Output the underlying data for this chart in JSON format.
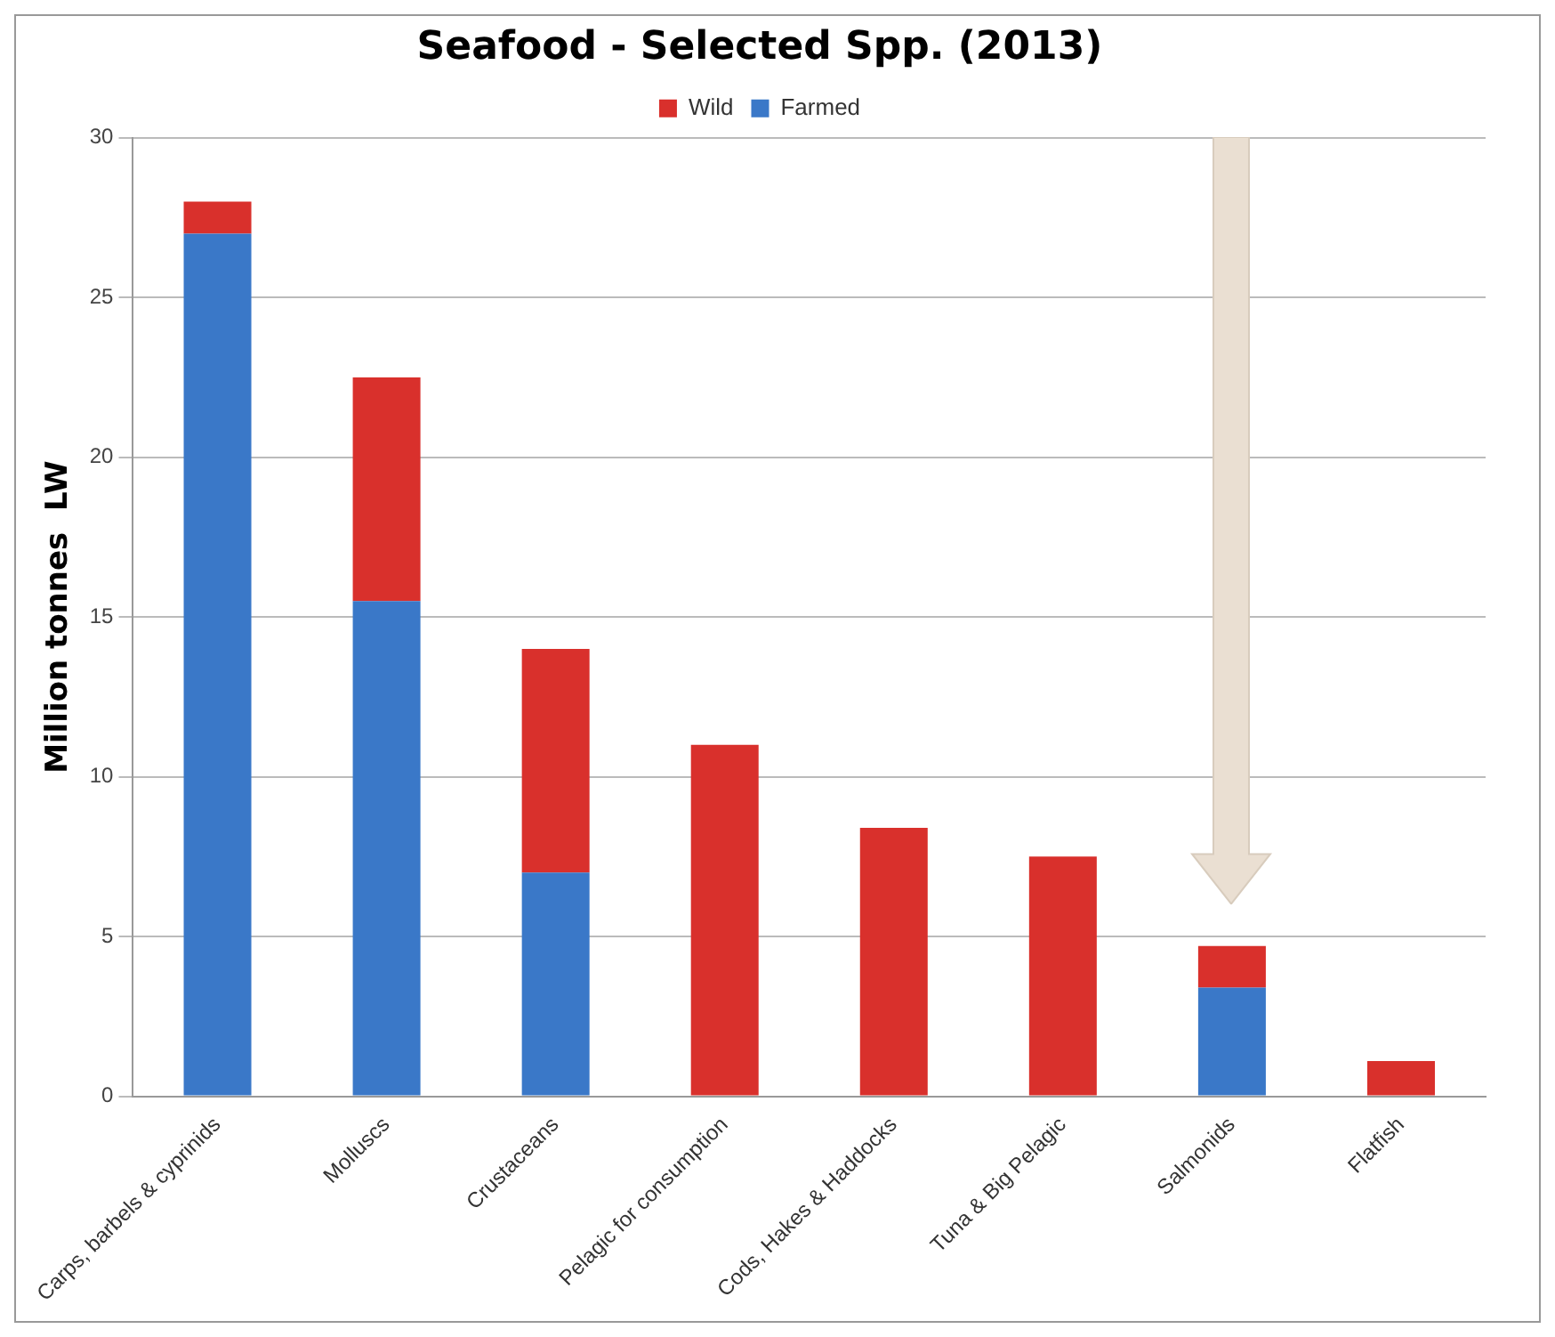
{
  "chart_data": {
    "type": "bar",
    "title": "Seafood - Selected Spp. (2013)",
    "ylabel": "Million tonnes  LW",
    "categories": [
      "Carps, barbels & cyprinids",
      "Molluscs",
      "Crustaceans",
      "Pelagic for consumption",
      "Cods, Hakes & Haddocks",
      "Tuna & Big Pelagic",
      "Salmonids",
      "Flatfish"
    ],
    "stacked": true,
    "series": [
      {
        "name": "Farmed",
        "color": "#3a78c8",
        "values": [
          27,
          15.5,
          7,
          0,
          0,
          0,
          3.4,
          0
        ]
      },
      {
        "name": "Wild",
        "color": "#d9302c",
        "values": [
          1,
          7,
          7,
          11,
          8.4,
          7.5,
          1.3,
          1.1
        ]
      }
    ],
    "ylim": [
      0,
      30
    ],
    "yticks": [
      0,
      5,
      10,
      15,
      20,
      25,
      30
    ],
    "grid": "y",
    "legend": "top"
  }
}
